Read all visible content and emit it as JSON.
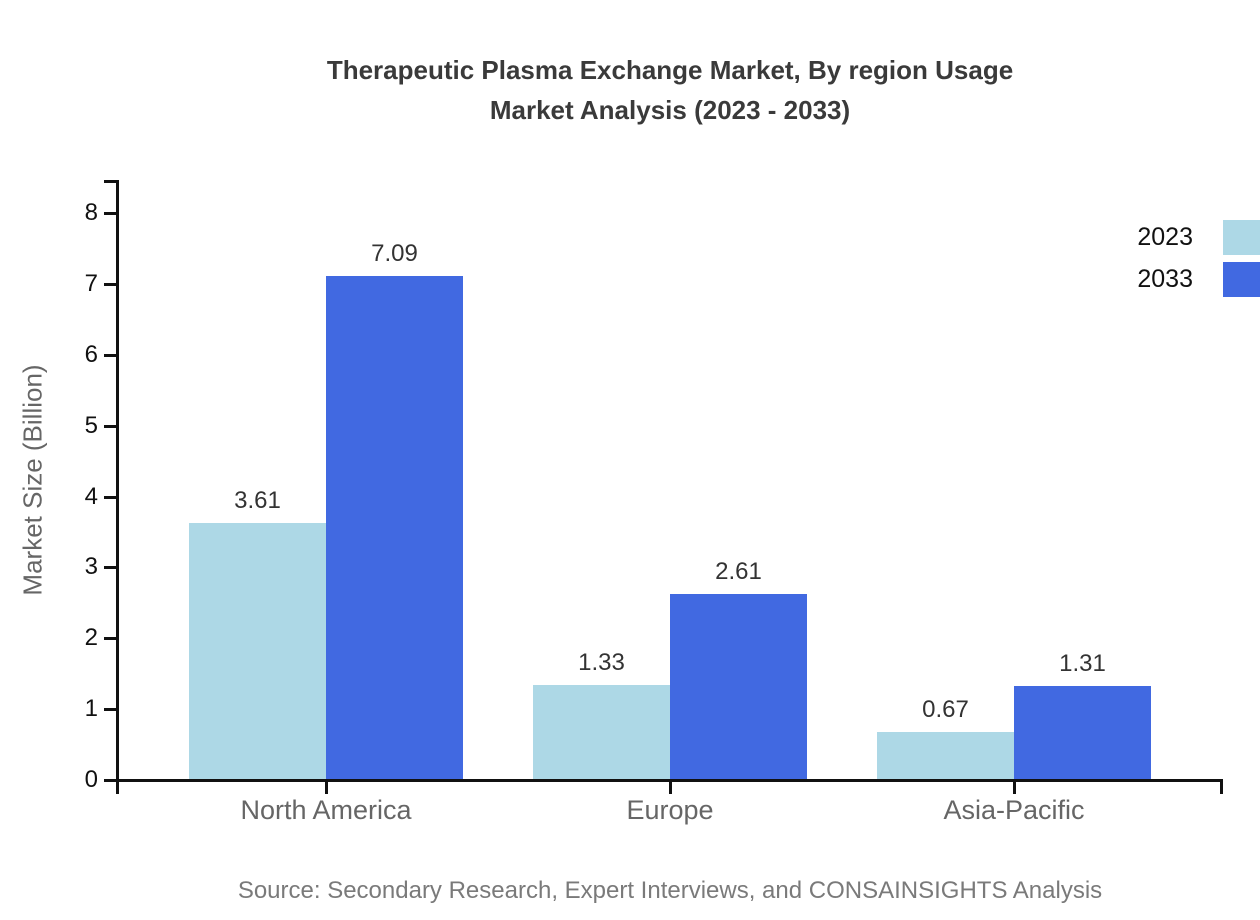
{
  "chart": {
    "title": "Therapeutic Plasma Exchange Market, By region Usage\nMarket Analysis (2023 - 2033)",
    "ylabel": "Market Size (Billion)",
    "source": "Source: Secondary Research, Expert Interviews, and CONSAINSIGHTS Analysis"
  },
  "chart_data": {
    "type": "bar",
    "title": "Therapeutic Plasma Exchange Market, By region Usage Market Analysis (2023 - 2033)",
    "xlabel": "",
    "ylabel": "Market Size (Billion)",
    "categories": [
      "North America",
      "Europe",
      "Asia-Pacific"
    ],
    "series": [
      {
        "name": "2023",
        "color": "#ADD8E6",
        "values": [
          3.61,
          1.33,
          0.67
        ]
      },
      {
        "name": "2033",
        "color": "#4169E1",
        "values": [
          7.09,
          2.61,
          1.31
        ]
      }
    ],
    "ylim": [
      0,
      8
    ],
    "y_ticks": [
      0,
      1,
      2,
      3,
      4,
      5,
      6,
      7,
      8
    ],
    "grid": false,
    "legend_position": "top-right",
    "value_labels": true,
    "value_label_format": "0.00",
    "source": "Source: Secondary Research, Expert Interviews, and CONSAINSIGHTS Analysis",
    "colors": {
      "axis": "#111111",
      "tick_label": "#111111",
      "category_label": "#666666",
      "value_label": "#333333",
      "title": "#3a3a3a",
      "source": "#7a7a7a",
      "background": "#ffffff"
    }
  }
}
